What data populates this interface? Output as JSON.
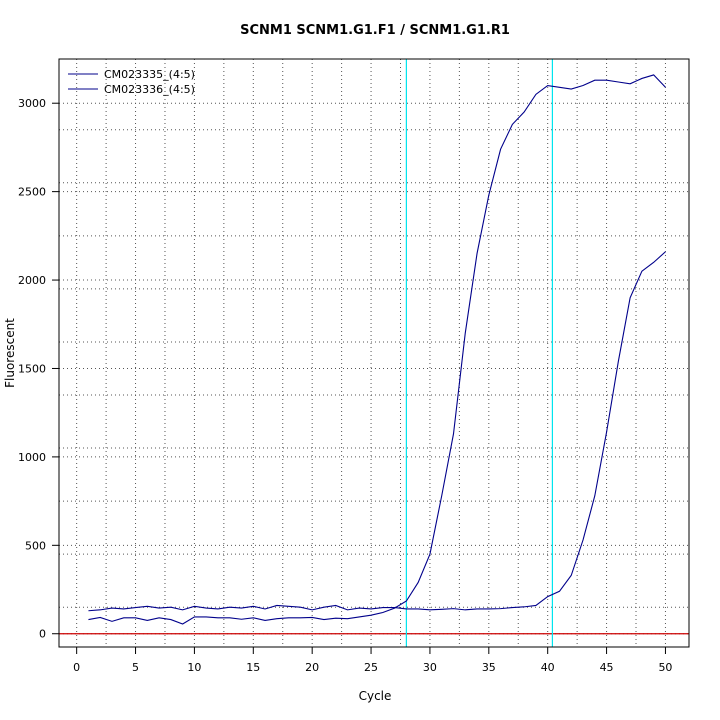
{
  "chart_data": {
    "type": "line",
    "title": "SCNM1  SCNM1.G1.F1 / SCNM1.G1.R1",
    "xlabel": "Cycle",
    "ylabel": "Fluorescent",
    "xlim": [
      -1.5,
      52
    ],
    "ylim": [
      -75,
      3250
    ],
    "xticks": [
      0,
      5,
      10,
      15,
      20,
      25,
      30,
      35,
      40,
      45,
      50
    ],
    "yticks": [
      0,
      500,
      1000,
      1500,
      2000,
      2500,
      3000
    ],
    "x_dotted_grid": [
      2.5,
      7.5,
      12.5,
      17.5,
      22.5,
      27.5,
      32.5,
      37.5,
      42.5,
      47.5
    ],
    "y_dotted_grid": [
      150,
      450,
      750,
      1050,
      1350,
      1650,
      1950,
      2250,
      2550,
      2850
    ],
    "legend_position": "top-left",
    "threshold_lines_x": [
      28,
      40.4
    ],
    "threshold_color": "#00e5ee",
    "baseline_y": 0,
    "baseline_color": "#cc0000",
    "series_color": "#00008b",
    "series": [
      {
        "name": "CM023335_(4:5)",
        "x": [
          1,
          2,
          3,
          4,
          5,
          6,
          7,
          8,
          9,
          10,
          11,
          12,
          13,
          14,
          15,
          16,
          17,
          18,
          19,
          20,
          21,
          22,
          23,
          24,
          25,
          26,
          27,
          28,
          29,
          30,
          31,
          32,
          33,
          34,
          35,
          36,
          37,
          38,
          39,
          40,
          41,
          42,
          43,
          44,
          45,
          46,
          47,
          48,
          49,
          50
        ],
        "y": [
          80,
          92,
          70,
          90,
          90,
          75,
          90,
          80,
          55,
          95,
          95,
          90,
          90,
          82,
          90,
          75,
          85,
          90,
          90,
          92,
          80,
          88,
          85,
          95,
          105,
          120,
          145,
          185,
          290,
          450,
          780,
          1130,
          1700,
          2150,
          2480,
          2740,
          2880,
          2950,
          3050,
          3100,
          3090,
          3080,
          3100,
          3130,
          3130,
          3120,
          3110,
          3140,
          3160,
          3090
        ]
      },
      {
        "name": "CM023336_(4:5)",
        "x": [
          1,
          2,
          3,
          4,
          5,
          6,
          7,
          8,
          9,
          10,
          11,
          12,
          13,
          14,
          15,
          16,
          17,
          18,
          19,
          20,
          21,
          22,
          23,
          24,
          25,
          26,
          27,
          28,
          29,
          30,
          31,
          32,
          33,
          34,
          35,
          36,
          37,
          38,
          39,
          40,
          41,
          42,
          43,
          44,
          45,
          46,
          47,
          48,
          49,
          50
        ],
        "y": [
          130,
          135,
          145,
          140,
          148,
          155,
          145,
          150,
          135,
          155,
          145,
          140,
          150,
          145,
          155,
          140,
          160,
          155,
          150,
          135,
          150,
          160,
          135,
          145,
          140,
          148,
          148,
          140,
          140,
          135,
          138,
          142,
          135,
          140,
          140,
          142,
          148,
          152,
          160,
          210,
          240,
          330,
          530,
          780,
          1140,
          1540,
          1900,
          2050,
          2100,
          2160
        ]
      }
    ]
  }
}
